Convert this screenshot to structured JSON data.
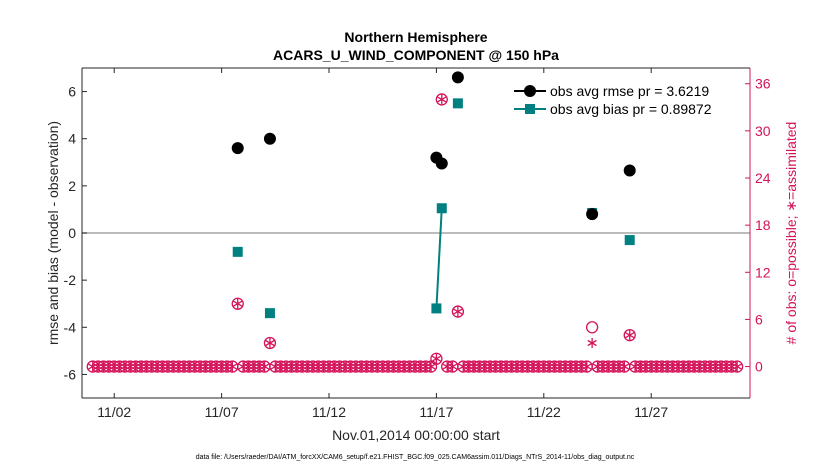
{
  "chart_data": {
    "type": "scatter",
    "title": "Northern Hemisphere",
    "subtitle": "ACARS_U_WIND_COMPONENT @ 150 hPa",
    "xlabel": "Nov.01,2014 00:00:00 start",
    "ylabel": "rmse and bias (model - observation)",
    "y2label": "# of obs: o=possible; ∗=assimilated",
    "footnote": "data file: /Users/raeder/DAI/ATM_forcXX/CAM6_setup/f.e21.FHIST_BGC.f09_025.CAM6assim.011/Diags_NTrS_2014-11/obs_diag_output.nc",
    "xlim": [
      0.5,
      31.6
    ],
    "ylim": [
      -7,
      7
    ],
    "y2lim": [
      -4,
      38
    ],
    "x_ticks": [
      2,
      7,
      12,
      17,
      22,
      27
    ],
    "x_tick_labels": [
      "11/02",
      "11/07",
      "11/12",
      "11/17",
      "11/22",
      "11/27"
    ],
    "y_ticks": [
      -6,
      -4,
      -2,
      0,
      2,
      4,
      6
    ],
    "y_tick_labels": [
      "-6",
      "-4",
      "-2",
      "0",
      "2",
      "4",
      "6"
    ],
    "y2_ticks": [
      0,
      6,
      12,
      18,
      24,
      30,
      36
    ],
    "y2_tick_labels": [
      "0",
      "6",
      "12",
      "18",
      "24",
      "30",
      "36"
    ],
    "colors": {
      "rmse": "#000000",
      "bias": "#008080",
      "obs": "#d4145a",
      "zero_line": "#a6a6a6"
    },
    "series": [
      {
        "name": "obs avg rmse pr = 3.6219",
        "axis": "left",
        "marker": "circle",
        "points": [
          [
            7.75,
            3.6
          ],
          [
            9.25,
            4.0
          ],
          [
            17.0,
            3.2
          ],
          [
            17.25,
            2.95
          ],
          [
            18.0,
            6.6
          ],
          [
            24.25,
            0.8
          ],
          [
            26.0,
            2.65
          ]
        ]
      },
      {
        "name": "obs avg bias pr = 0.89872",
        "axis": "left",
        "marker": "square",
        "points": [
          [
            7.75,
            -0.8
          ],
          [
            9.25,
            -3.4
          ],
          [
            17.0,
            -3.2
          ],
          [
            17.25,
            1.05
          ],
          [
            18.0,
            5.5
          ],
          [
            24.25,
            0.85
          ],
          [
            26.0,
            -0.3
          ]
        ],
        "segments": [
          [
            [
              17.0,
              -3.2
            ],
            [
              17.25,
              1.05
            ]
          ]
        ]
      }
    ],
    "obs_counts": {
      "axis": "right",
      "start": 1.0,
      "step": 0.25,
      "count": 121,
      "nonzero": [
        {
          "x": 7.75,
          "possible": 8,
          "assimilated": 8
        },
        {
          "x": 9.25,
          "possible": 3,
          "assimilated": 3
        },
        {
          "x": 17.0,
          "possible": 1,
          "assimilated": 1
        },
        {
          "x": 17.25,
          "possible": 34,
          "assimilated": 34
        },
        {
          "x": 18.0,
          "possible": 7,
          "assimilated": 7
        },
        {
          "x": 24.25,
          "possible": 5,
          "assimilated": 3
        },
        {
          "x": 26.0,
          "possible": 4,
          "assimilated": 4
        }
      ]
    }
  }
}
